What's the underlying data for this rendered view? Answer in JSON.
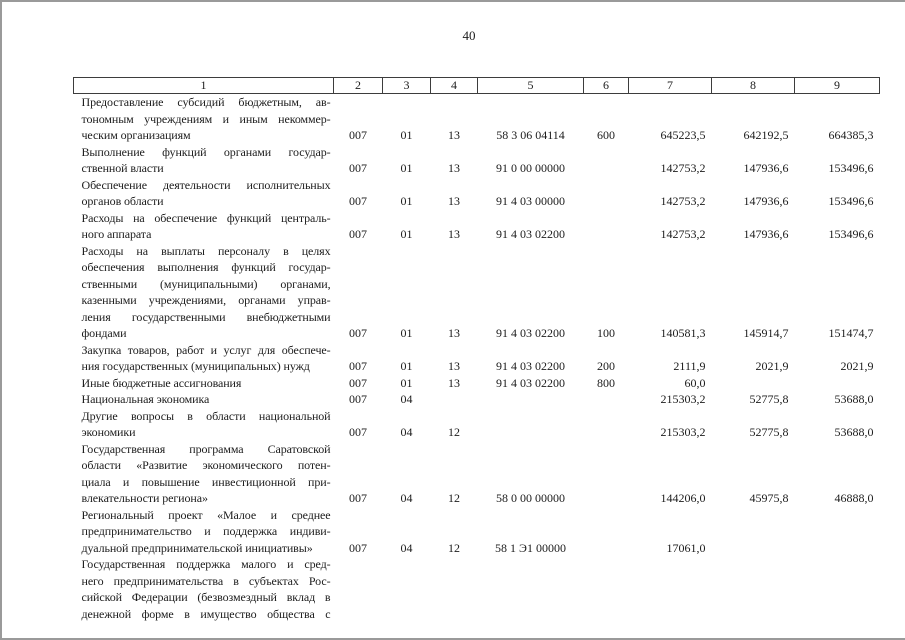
{
  "page": {
    "number": "40"
  },
  "colors": {
    "page_background": "#ffffff",
    "page_border": "#9a9a9a",
    "table_border": "#3d3d3d",
    "text": "#1c1c1c"
  },
  "table": {
    "header": [
      "1",
      "2",
      "3",
      "4",
      "5",
      "6",
      "7",
      "8",
      "9"
    ],
    "rows": [
      {
        "name_lines": [
          "Предоставление субсидий бюджетным, ав-",
          "тономным учреждениям и иным некоммер-",
          "ческим организациям"
        ],
        "continues": false,
        "cols": [
          "007",
          "01",
          "13",
          "58 3 06 04114",
          "600",
          "645223,5",
          "642192,5",
          "664385,3"
        ]
      },
      {
        "name_lines": [
          "Выполнение функций органами государ-",
          "ственной власти"
        ],
        "continues": false,
        "cols": [
          "007",
          "01",
          "13",
          "91 0 00 00000",
          "",
          "142753,2",
          "147936,6",
          "153496,6"
        ]
      },
      {
        "name_lines": [
          "Обеспечение деятельности исполнительных",
          "органов области"
        ],
        "continues": false,
        "cols": [
          "007",
          "01",
          "13",
          "91 4 03 00000",
          "",
          "142753,2",
          "147936,6",
          "153496,6"
        ]
      },
      {
        "name_lines": [
          "Расходы на обеспечение функций централь-",
          "ного аппарата"
        ],
        "continues": false,
        "cols": [
          "007",
          "01",
          "13",
          "91 4 03 02200",
          "",
          "142753,2",
          "147936,6",
          "153496,6"
        ]
      },
      {
        "name_lines": [
          "Расходы на выплаты персоналу в целях",
          "обеспечения выполнения функций государ-",
          "ственными (муниципальными) органами,",
          "казенными учреждениями, органами управ-",
          "ления государственными внебюджетными",
          "фондами"
        ],
        "continues": false,
        "cols": [
          "007",
          "01",
          "13",
          "91 4 03 02200",
          "100",
          "140581,3",
          "145914,7",
          "151474,7"
        ]
      },
      {
        "name_lines": [
          "Закупка товаров, работ и услуг для обеспече-",
          "ния государственных (муниципальных) нужд"
        ],
        "continues": false,
        "cols": [
          "007",
          "01",
          "13",
          "91 4 03 02200",
          "200",
          "2111,9",
          "2021,9",
          "2021,9"
        ]
      },
      {
        "name_lines": [
          "Иные бюджетные ассигнования"
        ],
        "continues": false,
        "cols": [
          "007",
          "01",
          "13",
          "91 4 03 02200",
          "800",
          "60,0",
          "",
          ""
        ]
      },
      {
        "name_lines": [
          "Национальная экономика"
        ],
        "continues": false,
        "cols": [
          "007",
          "04",
          "",
          "",
          "",
          "215303,2",
          "52775,8",
          "53688,0"
        ]
      },
      {
        "name_lines": [
          "Другие вопросы в области национальной",
          "экономики"
        ],
        "continues": false,
        "cols": [
          "007",
          "04",
          "12",
          "",
          "",
          "215303,2",
          "52775,8",
          "53688,0"
        ]
      },
      {
        "name_lines": [
          "Государственная программа Саратовской",
          "области «Развитие экономического потен-",
          "циала и повышение инвестиционной при-",
          "влекательности региона»"
        ],
        "continues": false,
        "cols": [
          "007",
          "04",
          "12",
          "58 0 00 00000",
          "",
          "144206,0",
          "45975,8",
          "46888,0"
        ]
      },
      {
        "name_lines": [
          "Региональный проект «Малое и среднее",
          "предпринимательство и поддержка индиви-",
          "дуальной предпринимательской инициативы»"
        ],
        "continues": false,
        "cols": [
          "007",
          "04",
          "12",
          "58 1 Э1 00000",
          "",
          "17061,0",
          "",
          ""
        ]
      },
      {
        "name_lines": [
          "Государственная поддержка малого и сред-",
          "него предпринимательства в субъектах Рос-",
          "сийской Федерации (безвозмездный вклад в",
          "денежной форме в имущество общества с"
        ],
        "continues": true,
        "cols": [
          "",
          "",
          "",
          "",
          "",
          "",
          "",
          ""
        ]
      }
    ]
  }
}
